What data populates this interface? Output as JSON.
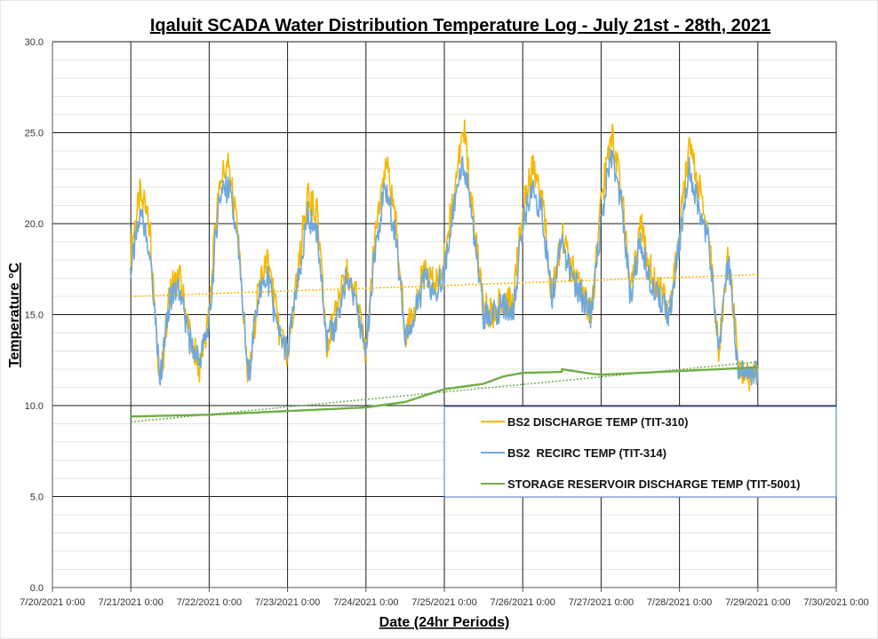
{
  "chart_data": {
    "type": "line",
    "title": "Iqaluit SCADA Water Distribution Temperature Log - July 21st - 28th, 2021",
    "xlabel": "Date (24hr Periods)",
    "ylabel": "Temperature °C",
    "ylim": [
      0,
      30
    ],
    "y_major_ticks": [
      "0.0",
      "5.0",
      "10.0",
      "15.0",
      "20.0",
      "25.0",
      "30.0"
    ],
    "x_range_days": [
      "2021-07-20",
      "2021-07-30"
    ],
    "x_ticks": [
      "7/20/2021 0:00",
      "7/21/2021 0:00",
      "7/22/2021 0:00",
      "7/23/2021 0:00",
      "7/24/2021 0:00",
      "7/25/2021 0:00",
      "7/26/2021 0:00",
      "7/27/2021 0:00",
      "7/28/2021 0:00",
      "7/29/2021 0:00",
      "7/30/2021 0:00"
    ],
    "grid": true,
    "legend_position": "lower-right",
    "series": [
      {
        "name": "BS2 DISCHARGE TEMP (TIT-310)",
        "color": "#F5B800",
        "x": [
          "7/21/2021 0:00",
          "7/21/2021 3:00",
          "7/21/2021 6:00",
          "7/21/2021 9:00",
          "7/21/2021 12:00",
          "7/21/2021 15:00",
          "7/21/2021 18:00",
          "7/21/2021 21:00",
          "7/22/2021 0:00",
          "7/22/2021 3:00",
          "7/22/2021 6:00",
          "7/22/2021 9:00",
          "7/22/2021 12:00",
          "7/22/2021 15:00",
          "7/22/2021 18:00",
          "7/22/2021 21:00",
          "7/23/2021 0:00",
          "7/23/2021 3:00",
          "7/23/2021 6:00",
          "7/23/2021 9:00",
          "7/23/2021 12:00",
          "7/23/2021 15:00",
          "7/23/2021 18:00",
          "7/23/2021 21:00",
          "7/24/2021 0:00",
          "7/24/2021 3:00",
          "7/24/2021 6:00",
          "7/24/2021 9:00",
          "7/24/2021 12:00",
          "7/24/2021 15:00",
          "7/24/2021 18:00",
          "7/24/2021 21:00",
          "7/25/2021 0:00",
          "7/25/2021 3:00",
          "7/25/2021 6:00",
          "7/25/2021 9:00",
          "7/25/2021 12:00",
          "7/25/2021 15:00",
          "7/25/2021 18:00",
          "7/25/2021 21:00",
          "7/26/2021 0:00",
          "7/26/2021 3:00",
          "7/26/2021 6:00",
          "7/26/2021 9:00",
          "7/26/2021 12:00",
          "7/26/2021 15:00",
          "7/26/2021 18:00",
          "7/26/2021 21:00",
          "7/27/2021 0:00",
          "7/27/2021 3:00",
          "7/27/2021 6:00",
          "7/27/2021 9:00",
          "7/27/2021 12:00",
          "7/27/2021 15:00",
          "7/27/2021 18:00",
          "7/27/2021 21:00",
          "7/28/2021 0:00",
          "7/28/2021 3:00",
          "7/28/2021 6:00",
          "7/28/2021 9:00",
          "7/28/2021 12:00",
          "7/28/2021 15:00",
          "7/28/2021 18:00",
          "7/28/2021 21:00",
          "7/29/2021 0:00"
        ],
        "values": [
          18.5,
          21.8,
          19.5,
          11.0,
          16.5,
          17.0,
          14.0,
          12.0,
          15.0,
          22.5,
          23.2,
          19.0,
          11.0,
          16.5,
          18.0,
          14.5,
          12.5,
          17.0,
          21.5,
          20.5,
          13.5,
          15.0,
          17.5,
          16.0,
          13.0,
          20.0,
          23.5,
          20.5,
          14.0,
          15.5,
          17.5,
          16.5,
          18.0,
          22.0,
          25.2,
          20.0,
          15.5,
          15.0,
          16.0,
          15.5,
          21.0,
          23.0,
          21.5,
          16.0,
          19.5,
          17.5,
          16.5,
          15.0,
          21.0,
          25.2,
          22.5,
          16.0,
          20.0,
          17.5,
          16.5,
          15.0,
          19.5,
          24.2,
          22.0,
          19.5,
          13.0,
          18.5,
          12.2,
          11.6,
          11.8
        ]
      },
      {
        "name": "BS2  RECIRC TEMP (TIT-314)",
        "color": "#6FA8DC",
        "x": [
          "7/21/2021 0:00",
          "7/21/2021 3:00",
          "7/21/2021 6:00",
          "7/21/2021 9:00",
          "7/21/2021 12:00",
          "7/21/2021 15:00",
          "7/21/2021 18:00",
          "7/21/2021 21:00",
          "7/22/2021 0:00",
          "7/22/2021 3:00",
          "7/22/2021 6:00",
          "7/22/2021 9:00",
          "7/22/2021 12:00",
          "7/22/2021 15:00",
          "7/22/2021 18:00",
          "7/22/2021 21:00",
          "7/23/2021 0:00",
          "7/23/2021 3:00",
          "7/23/2021 6:00",
          "7/23/2021 9:00",
          "7/23/2021 12:00",
          "7/23/2021 15:00",
          "7/23/2021 18:00",
          "7/23/2021 21:00",
          "7/24/2021 0:00",
          "7/24/2021 3:00",
          "7/24/2021 6:00",
          "7/24/2021 9:00",
          "7/24/2021 12:00",
          "7/24/2021 15:00",
          "7/24/2021 18:00",
          "7/24/2021 21:00",
          "7/25/2021 0:00",
          "7/25/2021 3:00",
          "7/25/2021 6:00",
          "7/25/2021 9:00",
          "7/25/2021 12:00",
          "7/25/2021 15:00",
          "7/25/2021 18:00",
          "7/25/2021 21:00",
          "7/26/2021 0:00",
          "7/26/2021 3:00",
          "7/26/2021 6:00",
          "7/26/2021 9:00",
          "7/26/2021 12:00",
          "7/26/2021 15:00",
          "7/26/2021 18:00",
          "7/26/2021 21:00",
          "7/27/2021 0:00",
          "7/27/2021 3:00",
          "7/27/2021 6:00",
          "7/27/2021 9:00",
          "7/27/2021 12:00",
          "7/27/2021 15:00",
          "7/27/2021 18:00",
          "7/27/2021 21:00",
          "7/28/2021 0:00",
          "7/28/2021 3:00",
          "7/28/2021 6:00",
          "7/28/2021 9:00",
          "7/28/2021 12:00",
          "7/28/2021 15:00",
          "7/28/2021 18:00",
          "7/28/2021 21:00",
          "7/29/2021 0:00"
        ],
        "values": [
          17.5,
          20.5,
          18.5,
          11.5,
          16.0,
          16.5,
          13.5,
          12.5,
          14.5,
          21.5,
          22.0,
          18.5,
          11.5,
          16.0,
          17.0,
          14.0,
          13.0,
          16.5,
          20.5,
          19.5,
          13.5,
          14.5,
          17.0,
          15.5,
          13.0,
          19.0,
          22.0,
          19.5,
          14.0,
          15.0,
          17.0,
          16.0,
          17.5,
          21.0,
          23.5,
          19.5,
          15.0,
          15.0,
          15.5,
          15.0,
          20.0,
          22.0,
          20.5,
          16.0,
          19.0,
          17.0,
          16.0,
          15.0,
          20.0,
          24.0,
          21.5,
          16.0,
          19.0,
          17.0,
          16.0,
          15.0,
          19.0,
          23.0,
          21.0,
          19.0,
          13.0,
          18.0,
          12.0,
          11.6,
          11.8
        ]
      },
      {
        "name": "STORAGE RESERVOIR DISCHARGE TEMP (TIT-5001)",
        "color": "#70AD47",
        "x": [
          "7/21/2021 0:00",
          "7/21/2021 12:00",
          "7/22/2021 0:00",
          "7/22/2021 12:00",
          "7/23/2021 0:00",
          "7/23/2021 12:00",
          "7/24/2021 0:00",
          "7/24/2021 12:00",
          "7/25/2021 0:00",
          "7/25/2021 12:00",
          "7/25/2021 18:00",
          "7/26/2021 0:00",
          "7/26/2021 12:00",
          "7/26/2021 12:00",
          "7/26/2021 21:00",
          "7/27/2021 0:00",
          "7/27/2021 12:00",
          "7/28/2021 0:00",
          "7/28/2021 12:00",
          "7/29/2021 0:00"
        ],
        "values": [
          9.4,
          9.45,
          9.5,
          9.6,
          9.7,
          9.8,
          9.9,
          10.2,
          10.9,
          11.2,
          11.6,
          11.8,
          11.85,
          12.0,
          11.75,
          11.7,
          11.8,
          11.9,
          12.0,
          12.1
        ]
      }
    ],
    "trendlines": [
      {
        "series": "BS2 DISCHARGE TEMP (TIT-310)",
        "x": [
          "7/21/2021 0:00",
          "7/29/2021 0:00"
        ],
        "values": [
          16.0,
          17.2
        ]
      },
      {
        "series": "STORAGE RESERVOIR DISCHARGE TEMP (TIT-5001)",
        "x": [
          "7/21/2021 0:00",
          "7/29/2021 0:00"
        ],
        "values": [
          9.1,
          12.4
        ]
      }
    ]
  }
}
